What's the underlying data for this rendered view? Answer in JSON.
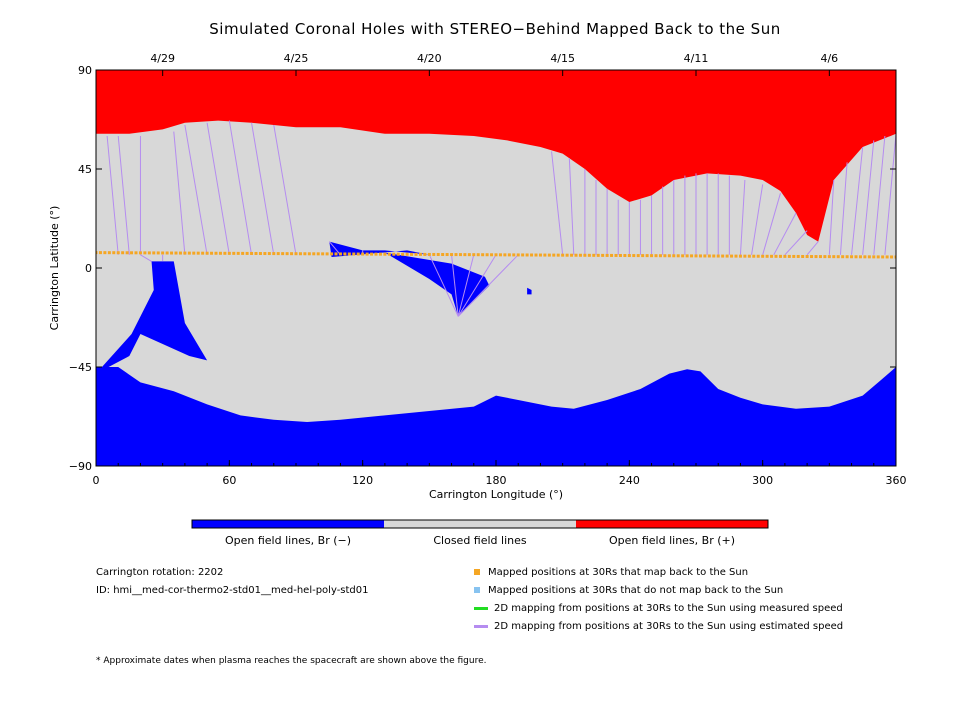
{
  "chart_data": {
    "type": "map",
    "title": "Simulated Coronal Holes with STEREO−Behind Mapped Back to the Sun",
    "xlabel": "Carrington Longitude (°)",
    "ylabel": "Carrington Latitude (°)",
    "xlim": [
      0,
      360
    ],
    "ylim": [
      -90,
      90
    ],
    "x_ticks": [
      0,
      60,
      120,
      180,
      240,
      300,
      360
    ],
    "y_ticks": [
      90,
      45,
      0,
      -45,
      -90
    ],
    "top_date_ticks": [
      {
        "label": "4/29",
        "lon": 30
      },
      {
        "label": "4/25",
        "lon": 90
      },
      {
        "label": "4/20",
        "lon": 150
      },
      {
        "label": "4/15",
        "lon": 210
      },
      {
        "label": "4/11",
        "lon": 270
      },
      {
        "label": "4/6",
        "lon": 330
      }
    ],
    "colorbar": [
      {
        "label": "Open field lines, Br (−)",
        "color": "#0000ff"
      },
      {
        "label": "Closed field lines",
        "color": "#d8d8d8"
      },
      {
        "label": "Open field lines, Br (+)",
        "color": "#ff0000"
      }
    ],
    "north_hole_boundary": [
      [
        0,
        61
      ],
      [
        15,
        61
      ],
      [
        30,
        63
      ],
      [
        40,
        66
      ],
      [
        55,
        67
      ],
      [
        70,
        66
      ],
      [
        90,
        64
      ],
      [
        110,
        64
      ],
      [
        130,
        61
      ],
      [
        150,
        61
      ],
      [
        170,
        60
      ],
      [
        185,
        58
      ],
      [
        200,
        55
      ],
      [
        210,
        52
      ],
      [
        220,
        45
      ],
      [
        230,
        36
      ],
      [
        240,
        30
      ],
      [
        250,
        33
      ],
      [
        260,
        40
      ],
      [
        275,
        43
      ],
      [
        290,
        42
      ],
      [
        300,
        40
      ],
      [
        308,
        35
      ],
      [
        315,
        25
      ],
      [
        320,
        15
      ],
      [
        325,
        12
      ],
      [
        332,
        40
      ],
      [
        345,
        55
      ],
      [
        360,
        61
      ]
    ],
    "south_hole_boundary": [
      [
        0,
        -45
      ],
      [
        10,
        -45
      ],
      [
        20,
        -52
      ],
      [
        35,
        -56
      ],
      [
        50,
        -62
      ],
      [
        65,
        -67
      ],
      [
        80,
        -69
      ],
      [
        95,
        -70
      ],
      [
        110,
        -69
      ],
      [
        130,
        -67
      ],
      [
        150,
        -65
      ],
      [
        170,
        -63
      ],
      [
        180,
        -58
      ],
      [
        190,
        -60
      ],
      [
        205,
        -63
      ],
      [
        215,
        -64
      ],
      [
        230,
        -60
      ],
      [
        245,
        -55
      ],
      [
        258,
        -48
      ],
      [
        266,
        -46
      ],
      [
        272,
        -47
      ],
      [
        280,
        -55
      ],
      [
        290,
        -59
      ],
      [
        300,
        -62
      ],
      [
        315,
        -64
      ],
      [
        330,
        -63
      ],
      [
        345,
        -58
      ],
      [
        352,
        -52
      ],
      [
        360,
        -45
      ]
    ],
    "mid_holes": [
      {
        "name": "Br (−) hole near 20°",
        "points": [
          [
            25,
            3
          ],
          [
            35,
            3
          ],
          [
            40,
            -25
          ],
          [
            50,
            -42
          ],
          [
            42,
            -40
          ],
          [
            20,
            -30
          ],
          [
            15,
            -40
          ],
          [
            0,
            -48
          ],
          [
            16,
            -30
          ],
          [
            26,
            -10
          ]
        ]
      },
      {
        "name": "Br (−) hole near 105°",
        "points": [
          [
            105,
            12
          ],
          [
            120,
            8
          ],
          [
            130,
            8
          ],
          [
            150,
            6
          ],
          [
            140,
            8
          ],
          [
            118,
            6
          ],
          [
            106,
            5
          ]
        ]
      },
      {
        "name": "Br (−) hole near 165°",
        "points": [
          [
            130,
            7
          ],
          [
            160,
            2
          ],
          [
            175,
            -4
          ],
          [
            177,
            -8
          ],
          [
            170,
            -15
          ],
          [
            163,
            -22
          ],
          [
            160,
            -12
          ],
          [
            150,
            -5
          ]
        ]
      },
      {
        "name": "Br (−) hole near 195°",
        "points": [
          [
            194,
            -9
          ],
          [
            196,
            -10
          ],
          [
            196,
            -12
          ],
          [
            194,
            -12
          ]
        ]
      }
    ],
    "spacecraft_track": {
      "description": "Mapped positions at 30Rs that map back to the Sun",
      "lon_range": [
        0,
        360
      ],
      "lat_start": 7,
      "lat_end": 5
    },
    "estimated_speed_lines": [
      {
        "from": [
          0,
          6
        ],
        "to": [
          0,
          30
        ]
      },
      {
        "from": [
          10,
          6
        ],
        "to": [
          5,
          60
        ]
      },
      {
        "from": [
          15,
          6
        ],
        "to": [
          10,
          60
        ]
      },
      {
        "from": [
          20,
          6
        ],
        "to": [
          20,
          60
        ]
      },
      {
        "from": [
          40,
          6
        ],
        "to": [
          35,
          62
        ]
      },
      {
        "from": [
          50,
          6
        ],
        "to": [
          40,
          65
        ]
      },
      {
        "from": [
          60,
          6
        ],
        "to": [
          50,
          66
        ]
      },
      {
        "from": [
          70,
          6
        ],
        "to": [
          60,
          67
        ]
      },
      {
        "from": [
          80,
          6
        ],
        "to": [
          70,
          66
        ]
      },
      {
        "from": [
          90,
          6
        ],
        "to": [
          80,
          65
        ]
      },
      {
        "from": [
          210,
          6
        ],
        "to": [
          205,
          53
        ]
      },
      {
        "from": [
          215,
          6
        ],
        "to": [
          213,
          50
        ]
      },
      {
        "from": [
          220,
          6
        ],
        "to": [
          220,
          45
        ]
      },
      {
        "from": [
          225,
          6
        ],
        "to": [
          225,
          40
        ]
      },
      {
        "from": [
          230,
          6
        ],
        "to": [
          230,
          36
        ]
      },
      {
        "from": [
          235,
          6
        ],
        "to": [
          235,
          31
        ]
      },
      {
        "from": [
          240,
          6
        ],
        "to": [
          240,
          30
        ]
      },
      {
        "from": [
          245,
          6
        ],
        "to": [
          245,
          31
        ]
      },
      {
        "from": [
          250,
          6
        ],
        "to": [
          250,
          33
        ]
      },
      {
        "from": [
          255,
          6
        ],
        "to": [
          255,
          37
        ]
      },
      {
        "from": [
          260,
          6
        ],
        "to": [
          260,
          40
        ]
      },
      {
        "from": [
          265,
          6
        ],
        "to": [
          265,
          42
        ]
      },
      {
        "from": [
          270,
          6
        ],
        "to": [
          270,
          43
        ]
      },
      {
        "from": [
          275,
          6
        ],
        "to": [
          275,
          43
        ]
      },
      {
        "from": [
          280,
          6
        ],
        "to": [
          280,
          43
        ]
      },
      {
        "from": [
          285,
          6
        ],
        "to": [
          285,
          42
        ]
      },
      {
        "from": [
          290,
          6
        ],
        "to": [
          292,
          40
        ]
      },
      {
        "from": [
          295,
          6
        ],
        "to": [
          300,
          38
        ]
      },
      {
        "from": [
          300,
          6
        ],
        "to": [
          308,
          34
        ]
      },
      {
        "from": [
          305,
          6
        ],
        "to": [
          315,
          25
        ]
      },
      {
        "from": [
          310,
          6
        ],
        "to": [
          320,
          17
        ]
      },
      {
        "from": [
          320,
          6
        ],
        "to": [
          325,
          12
        ]
      },
      {
        "from": [
          330,
          6
        ],
        "to": [
          332,
          40
        ]
      },
      {
        "from": [
          335,
          6
        ],
        "to": [
          338,
          48
        ]
      },
      {
        "from": [
          340,
          6
        ],
        "to": [
          345,
          55
        ]
      },
      {
        "from": [
          345,
          6
        ],
        "to": [
          350,
          58
        ]
      },
      {
        "from": [
          350,
          6
        ],
        "to": [
          355,
          60
        ]
      },
      {
        "from": [
          355,
          6
        ],
        "to": [
          360,
          61
        ]
      },
      {
        "from": [
          110,
          6
        ],
        "to": [
          105,
          12
        ]
      },
      {
        "from": [
          120,
          6
        ],
        "to": [
          120,
          8
        ]
      },
      {
        "from": [
          150,
          6
        ],
        "to": [
          163,
          -22
        ]
      },
      {
        "from": [
          160,
          6
        ],
        "to": [
          163,
          -22
        ]
      },
      {
        "from": [
          170,
          6
        ],
        "to": [
          163,
          -22
        ]
      },
      {
        "from": [
          180,
          6
        ],
        "to": [
          163,
          -22
        ]
      },
      {
        "from": [
          190,
          6
        ],
        "to": [
          163,
          -22
        ]
      },
      {
        "from": [
          20,
          6
        ],
        "to": [
          25,
          3
        ]
      },
      {
        "from": [
          30,
          6
        ],
        "to": [
          30,
          3
        ]
      }
    ]
  },
  "colorbar_labels": {
    "neg": "Open field lines, Br (−)",
    "closed": "Closed field lines",
    "pos": "Open field lines, Br (+)"
  },
  "info": {
    "rotation": "Carrington rotation: 2202",
    "id": "ID: hmi__med-cor-thermo2-std01__med-hel-poly-std01"
  },
  "legend": [
    {
      "label": "Mapped positions at 30Rs that map back to the Sun",
      "color": "#f5a623",
      "kind": "square"
    },
    {
      "label": "Mapped positions at 30Rs that do not map back to the Sun",
      "color": "#87c3f0",
      "kind": "square"
    },
    {
      "label": "2D mapping from positions at 30Rs to the Sun using measured speed",
      "color": "#22dd22",
      "kind": "line"
    },
    {
      "label": "2D mapping from positions at 30Rs to the Sun using estimated speed",
      "color": "#b58cf0",
      "kind": "line"
    }
  ],
  "footnote": "* Approximate dates when plasma reaches the spacecraft are shown above the figure."
}
